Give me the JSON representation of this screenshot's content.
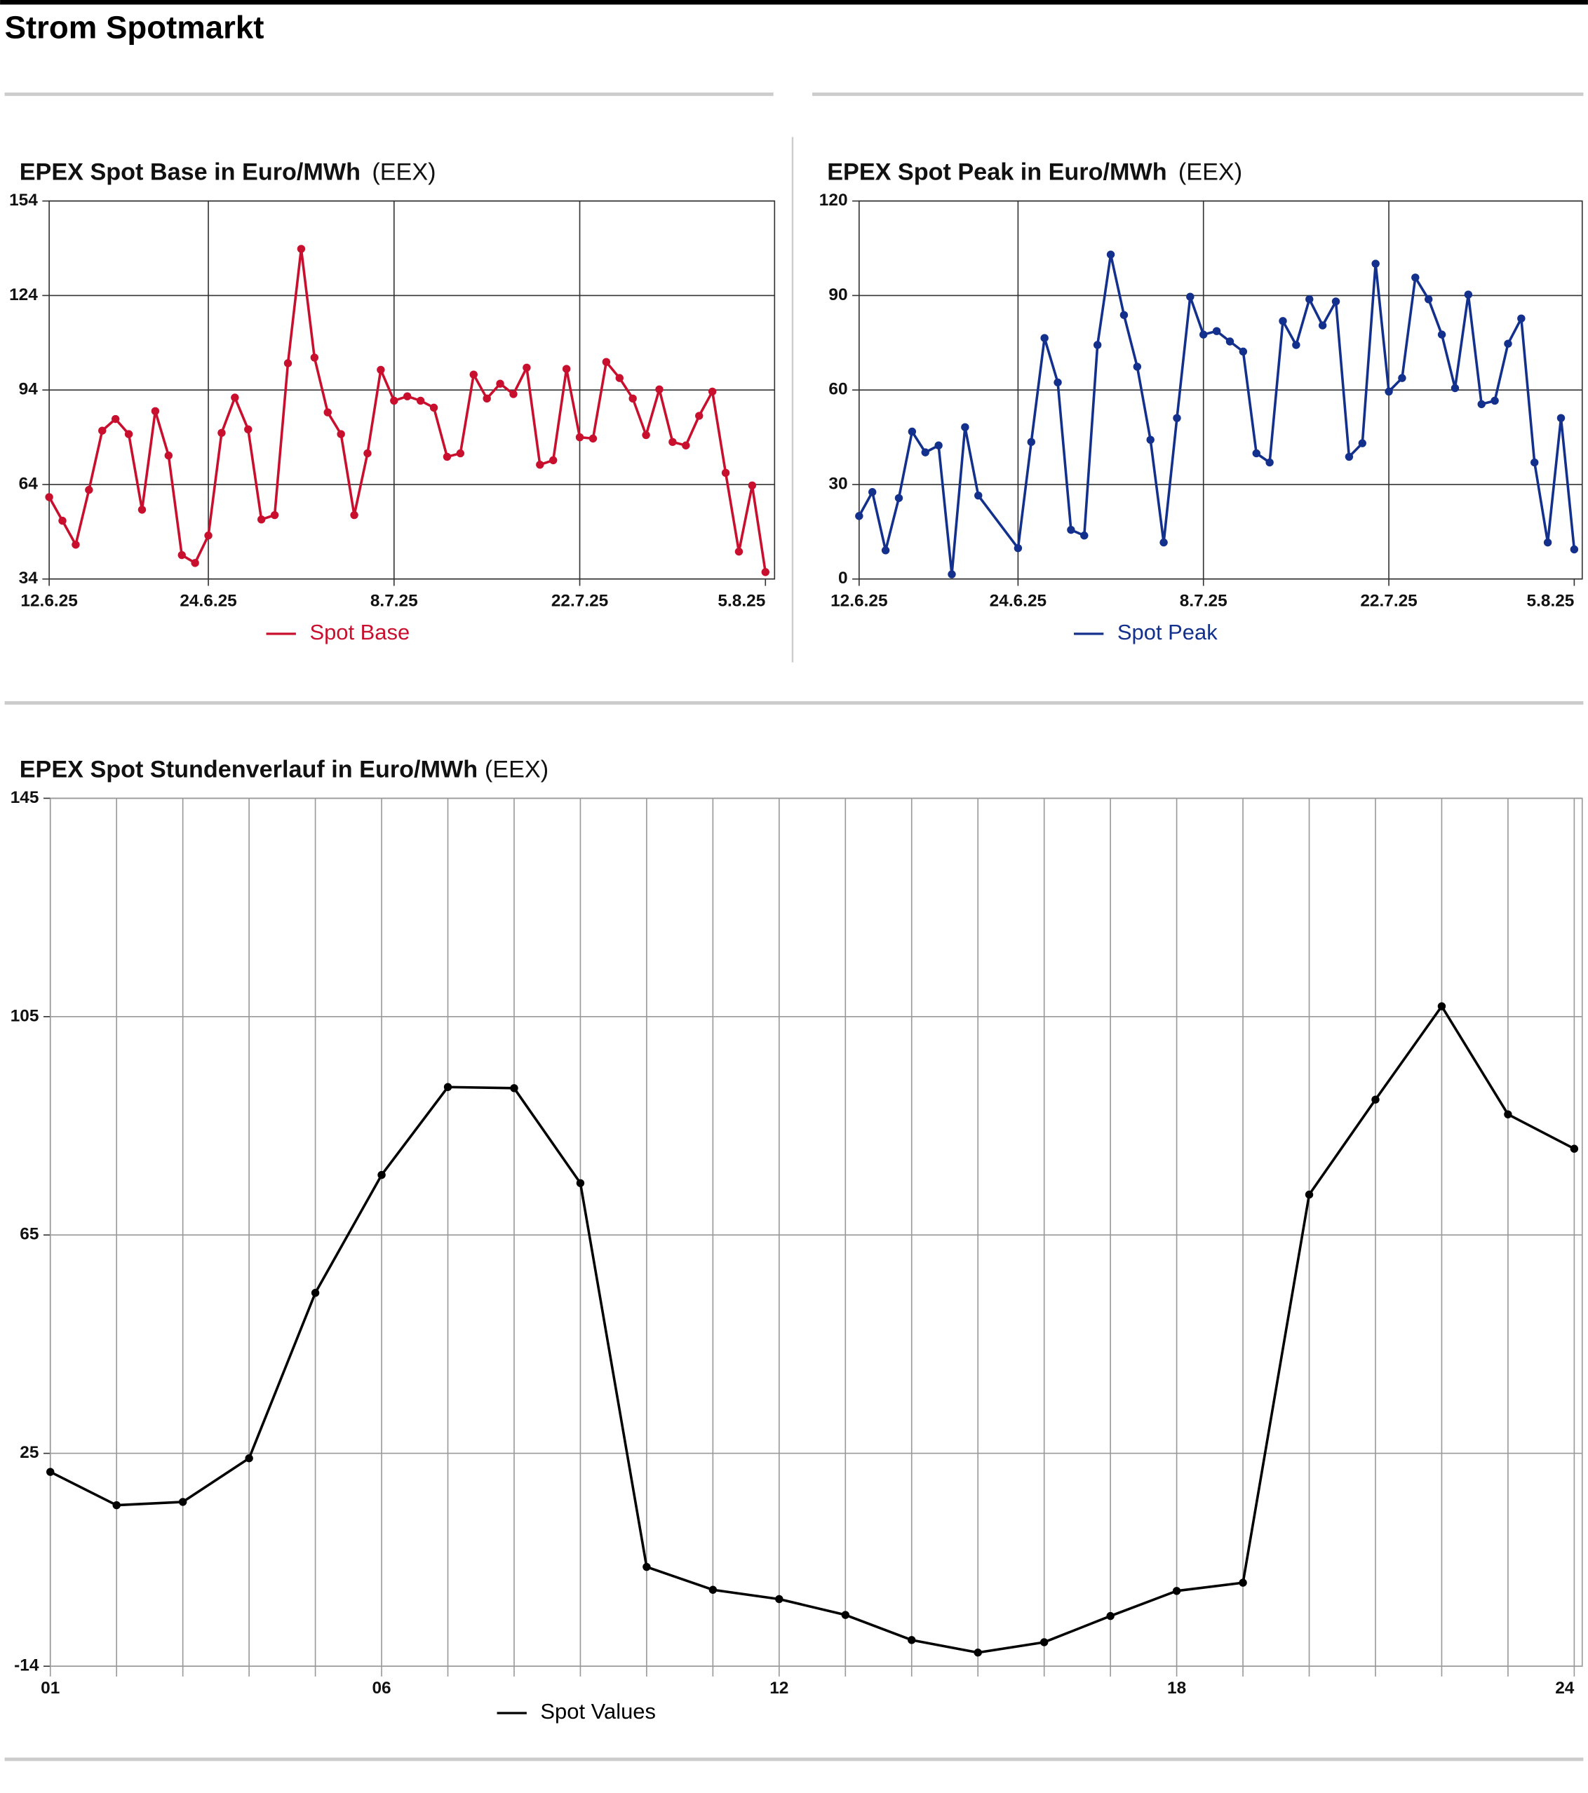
{
  "header": {
    "title": "Strom Spotmarkt"
  },
  "chart_data": [
    {
      "type": "line",
      "title": "EPEX Spot Base in Euro/MWh",
      "source": "(EEX)",
      "x": [
        "12.6.25",
        "13.6.25",
        "14.6.25",
        "15.6.25",
        "16.6.25",
        "17.6.25",
        "18.6.25",
        "19.6.25",
        "20.6.25",
        "21.6.25",
        "22.6.25",
        "23.6.25",
        "24.6.25",
        "25.6.25",
        "26.6.25",
        "27.6.25",
        "28.6.25",
        "29.6.25",
        "30.6.25",
        "1.7.25",
        "2.7.25",
        "3.7.25",
        "4.7.25",
        "5.7.25",
        "6.7.25",
        "7.7.25",
        "8.7.25",
        "9.7.25",
        "10.7.25",
        "11.7.25",
        "12.7.25",
        "13.7.25",
        "14.7.25",
        "15.7.25",
        "16.7.25",
        "17.7.25",
        "18.7.25",
        "19.7.25",
        "20.7.25",
        "21.7.25",
        "22.7.25",
        "23.7.25",
        "24.7.25",
        "25.7.25",
        "26.7.25",
        "27.7.25",
        "28.7.25",
        "29.7.25",
        "30.7.25",
        "31.7.25",
        "1.8.25",
        "2.8.25",
        "3.8.25",
        "4.8.25",
        "5.8.25"
      ],
      "series": [
        {
          "name": "Spot Base",
          "color": "#c8102e",
          "values": [
            60,
            52.5,
            44.9,
            62.3,
            81.1,
            84.8,
            80,
            56,
            87.3,
            73.2,
            41.6,
            39.1,
            47.8,
            80.4,
            91.6,
            81.5,
            52.9,
            54.3,
            102.5,
            138.8,
            104.3,
            86.9,
            80,
            54.3,
            73.9,
            100.4,
            90.6,
            92,
            90.6,
            88.4,
            72.8,
            73.9,
            98.9,
            91.3,
            96,
            92.7,
            101.1,
            70.3,
            71.7,
            100.7,
            79,
            78.6,
            102.9,
            97.8,
            91.3,
            79.7,
            94.2,
            77.5,
            76.4,
            85.8,
            93.5,
            67.7,
            42.7,
            63.7,
            36.2
          ]
        }
      ],
      "xlim": [
        "12.6.25",
        "5.8.25"
      ],
      "xticks": [
        "12.6.25",
        "24.6.25",
        "8.7.25",
        "22.7.25",
        "5.8.25"
      ],
      "ylim": [
        34,
        154
      ],
      "yticks": [
        34,
        64,
        94,
        124,
        154
      ],
      "grid": true
    },
    {
      "type": "line",
      "title": "EPEX Spot Peak in Euro/MWh",
      "source": "(EEX)",
      "x": [
        "12.6.25",
        "13.6.25",
        "14.6.25",
        "15.6.25",
        "16.6.25",
        "17.6.25",
        "18.6.25",
        "19.6.25",
        "20.6.25",
        "21.6.25",
        "24.6.25",
        "25.6.25",
        "26.6.25",
        "27.6.25",
        "28.6.25",
        "29.6.25",
        "30.6.25",
        "1.7.25",
        "2.7.25",
        "3.7.25",
        "4.7.25",
        "5.7.25",
        "6.7.25",
        "7.7.25",
        "8.7.25",
        "9.7.25",
        "10.7.25",
        "11.7.25",
        "12.7.25",
        "13.7.25",
        "14.7.25",
        "15.7.25",
        "16.7.25",
        "17.7.25",
        "18.7.25",
        "19.7.25",
        "20.7.25",
        "21.7.25",
        "22.7.25",
        "23.7.25",
        "24.7.25",
        "25.7.25",
        "26.7.25",
        "27.7.25",
        "28.7.25",
        "29.7.25",
        "30.7.25",
        "31.7.25",
        "1.8.25",
        "2.8.25",
        "3.8.25",
        "4.8.25",
        "5.8.25"
      ],
      "series": [
        {
          "name": "Spot Peak",
          "color": "#12308c",
          "values": [
            20,
            27.6,
            9.1,
            25.7,
            46.8,
            40.2,
            42.4,
            1.5,
            48.2,
            26.5,
            9.8,
            43.5,
            76.5,
            62.4,
            15.6,
            13.8,
            74.3,
            103,
            83.8,
            67.4,
            44.2,
            11.6,
            51.1,
            89.6,
            77.6,
            78.7,
            75.4,
            72.2,
            39.9,
            37,
            81.9,
            74.3,
            88.8,
            80.5,
            88.1,
            38.8,
            43.1,
            100.1,
            59.5,
            63.8,
            95.7,
            88.8,
            77.6,
            60.6,
            90.3,
            55.5,
            56.6,
            74.7,
            82.7,
            37,
            11.6,
            51.1,
            9.4
          ]
        }
      ],
      "xlim": [
        "12.6.25",
        "5.8.25"
      ],
      "xticks": [
        "12.6.25",
        "24.6.25",
        "8.7.25",
        "22.7.25",
        "5.8.25"
      ],
      "ylim": [
        0,
        120
      ],
      "yticks": [
        0,
        30,
        60,
        90,
        120
      ],
      "grid": true
    },
    {
      "type": "line",
      "title": "EPEX Spot Stundenverlauf in Euro/MWh",
      "source": "(EEX)",
      "categories": [
        "01",
        null,
        null,
        null,
        null,
        "06",
        null,
        null,
        null,
        null,
        null,
        "12",
        null,
        null,
        null,
        null,
        null,
        "18",
        null,
        null,
        null,
        null,
        null,
        "24"
      ],
      "series": [
        {
          "name": "Spot Values",
          "color": "#000000",
          "values": [
            21.6,
            15.5,
            16.1,
            24.1,
            54.4,
            76,
            92.1,
            91.9,
            74.5,
            4.2,
            0,
            -1.7,
            -4.6,
            -9.2,
            -11.5,
            -9.6,
            -4.8,
            -0.2,
            1.3,
            72.4,
            89.8,
            106.9,
            87.1,
            80.8
          ]
        }
      ],
      "ylim": [
        -14,
        145
      ],
      "yticks": [
        -14,
        25,
        65,
        105,
        145
      ],
      "grid": true
    }
  ]
}
